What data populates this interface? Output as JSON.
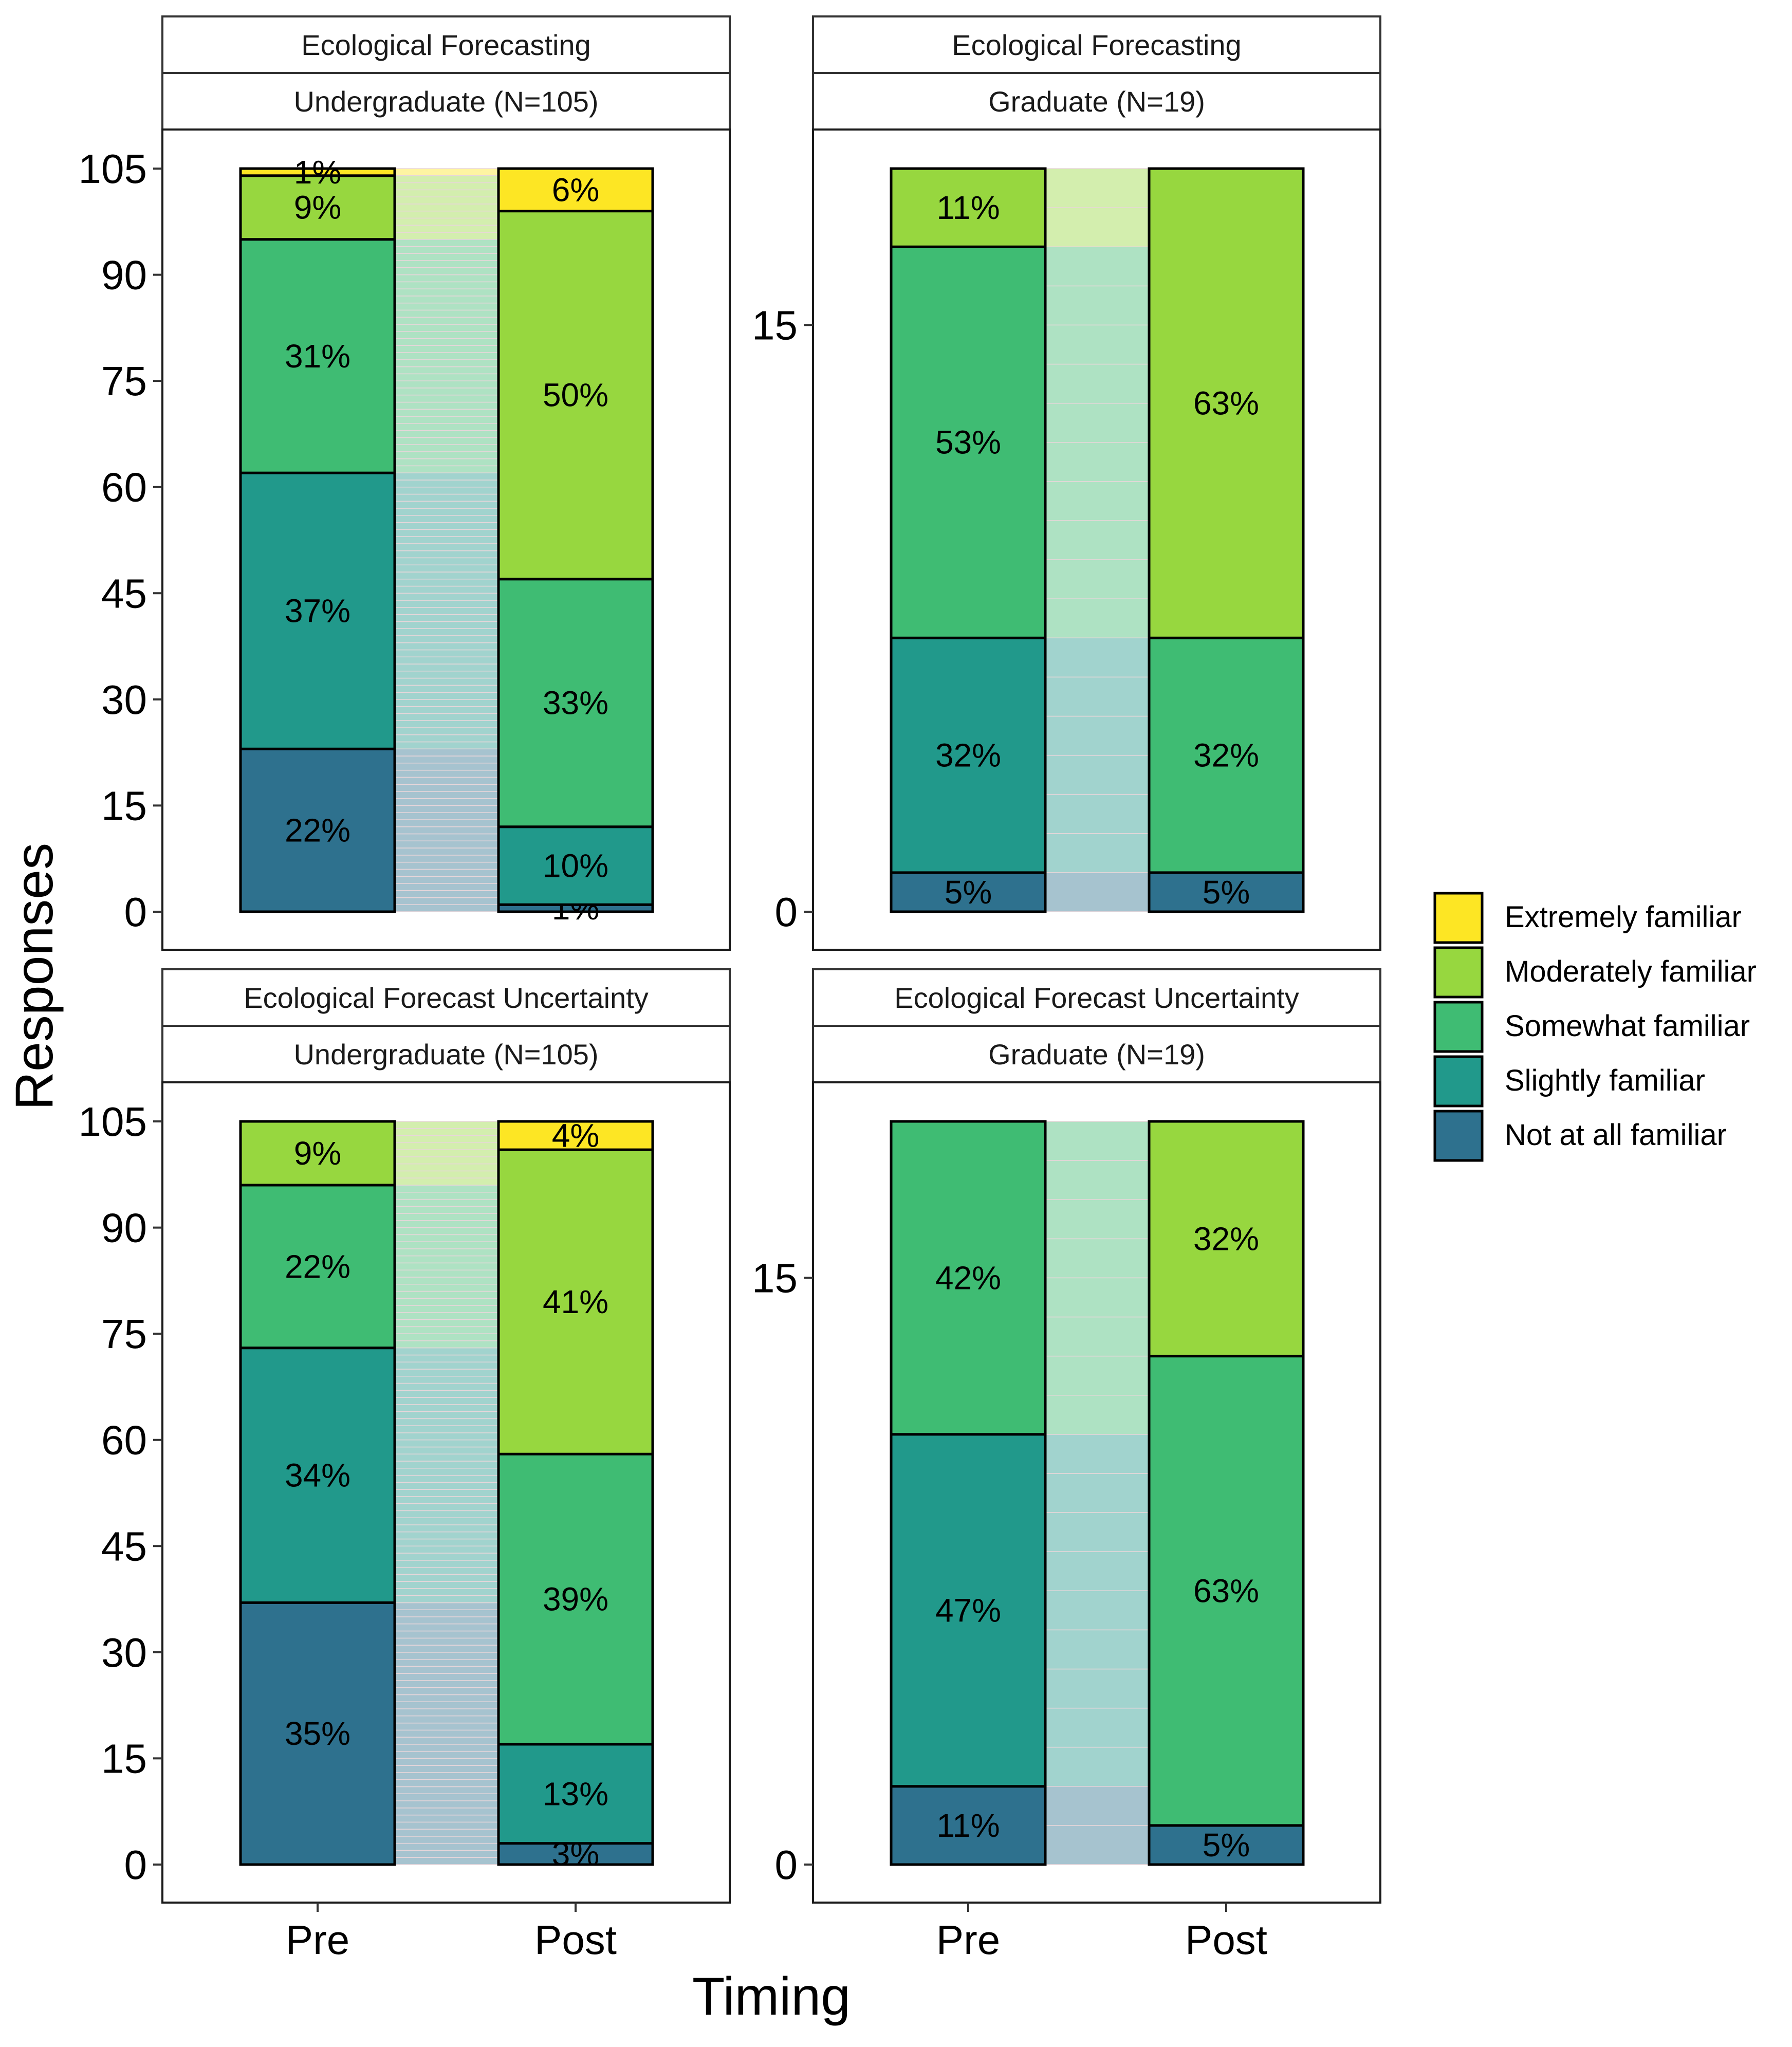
{
  "chart_data": {
    "type": "alluvial",
    "ylabel": "Responses",
    "xlabel": "Timing",
    "x_categories": [
      "Pre",
      "Post"
    ],
    "levels": [
      "Not at all familiar",
      "Slightly familiar",
      "Somewhat familiar",
      "Moderately familiar",
      "Extremely familiar"
    ],
    "legend": {
      "position": "right",
      "order": [
        "Extremely familiar",
        "Moderately familiar",
        "Somewhat familiar",
        "Slightly familiar",
        "Not at all familiar"
      ]
    },
    "colors": {
      "Not at all familiar": "#2E718E",
      "Slightly familiar": "#21998B",
      "Somewhat familiar": "#3FBC73",
      "Moderately familiar": "#97D73F",
      "Extremely familiar": "#FDE624"
    },
    "panels": [
      {
        "topic": "Ecological Forecasting",
        "group": "Undergraduate (N=105)",
        "total": 105,
        "yticks": [
          "0",
          "15",
          "30",
          "45",
          "60",
          "75",
          "90",
          "105"
        ],
        "ytick_values": [
          0,
          15,
          30,
          45,
          60,
          75,
          90,
          105
        ],
        "bars": {
          "Pre": [
            {
              "level": "Not at all familiar",
              "count": 23,
              "label": "22%"
            },
            {
              "level": "Slightly familiar",
              "count": 39,
              "label": "37%"
            },
            {
              "level": "Somewhat familiar",
              "count": 33,
              "label": "31%"
            },
            {
              "level": "Moderately familiar",
              "count": 9,
              "label": "9%"
            },
            {
              "level": "Extremely familiar",
              "count": 1,
              "label": "1%"
            }
          ],
          "Post": [
            {
              "level": "Not at all familiar",
              "count": 1,
              "label": "1%"
            },
            {
              "level": "Slightly familiar",
              "count": 11,
              "label": "10%"
            },
            {
              "level": "Somewhat familiar",
              "count": 35,
              "label": "33%"
            },
            {
              "level": "Moderately familiar",
              "count": 52,
              "label": "50%"
            },
            {
              "level": "Extremely familiar",
              "count": 6,
              "label": "6%"
            }
          ]
        }
      },
      {
        "topic": "Ecological Forecasting",
        "group": "Graduate (N=19)",
        "total": 19,
        "yticks": [
          "0",
          "15"
        ],
        "ytick_values": [
          0,
          15
        ],
        "bars": {
          "Pre": [
            {
              "level": "Not at all familiar",
              "count": 1,
              "label": "5%"
            },
            {
              "level": "Slightly familiar",
              "count": 6,
              "label": "32%"
            },
            {
              "level": "Somewhat familiar",
              "count": 10,
              "label": "53%"
            },
            {
              "level": "Moderately familiar",
              "count": 2,
              "label": "11%"
            }
          ],
          "Post": [
            {
              "level": "Not at all familiar",
              "count": 1,
              "label": "5%"
            },
            {
              "level": "Somewhat familiar",
              "count": 6,
              "label": "32%"
            },
            {
              "level": "Moderately familiar",
              "count": 12,
              "label": "63%"
            }
          ]
        }
      },
      {
        "topic": "Ecological Forecast Uncertainty",
        "group": "Undergraduate (N=105)",
        "total": 105,
        "yticks": [
          "0",
          "15",
          "30",
          "45",
          "60",
          "75",
          "90",
          "105"
        ],
        "ytick_values": [
          0,
          15,
          30,
          45,
          60,
          75,
          90,
          105
        ],
        "bars": {
          "Pre": [
            {
              "level": "Not at all familiar",
              "count": 37,
              "label": "35%"
            },
            {
              "level": "Slightly familiar",
              "count": 36,
              "label": "34%"
            },
            {
              "level": "Somewhat familiar",
              "count": 23,
              "label": "22%"
            },
            {
              "level": "Moderately familiar",
              "count": 9,
              "label": "9%"
            }
          ],
          "Post": [
            {
              "level": "Not at all familiar",
              "count": 3,
              "label": "3%"
            },
            {
              "level": "Slightly familiar",
              "count": 14,
              "label": "13%"
            },
            {
              "level": "Somewhat familiar",
              "count": 41,
              "label": "39%"
            },
            {
              "level": "Moderately familiar",
              "count": 43,
              "label": "41%"
            },
            {
              "level": "Extremely familiar",
              "count": 4,
              "label": "4%"
            }
          ]
        }
      },
      {
        "topic": "Ecological Forecast Uncertainty",
        "group": "Graduate (N=19)",
        "total": 19,
        "yticks": [
          "0",
          "15"
        ],
        "ytick_values": [
          0,
          15
        ],
        "bars": {
          "Pre": [
            {
              "level": "Not at all familiar",
              "count": 2,
              "label": "11%"
            },
            {
              "level": "Slightly familiar",
              "count": 9,
              "label": "47%"
            },
            {
              "level": "Somewhat familiar",
              "count": 8,
              "label": "42%"
            }
          ],
          "Post": [
            {
              "level": "Not at all familiar",
              "count": 1,
              "label": "5%"
            },
            {
              "level": "Somewhat familiar",
              "count": 12,
              "label": "63%"
            },
            {
              "level": "Moderately familiar",
              "count": 6,
              "label": "32%"
            }
          ]
        }
      }
    ]
  }
}
